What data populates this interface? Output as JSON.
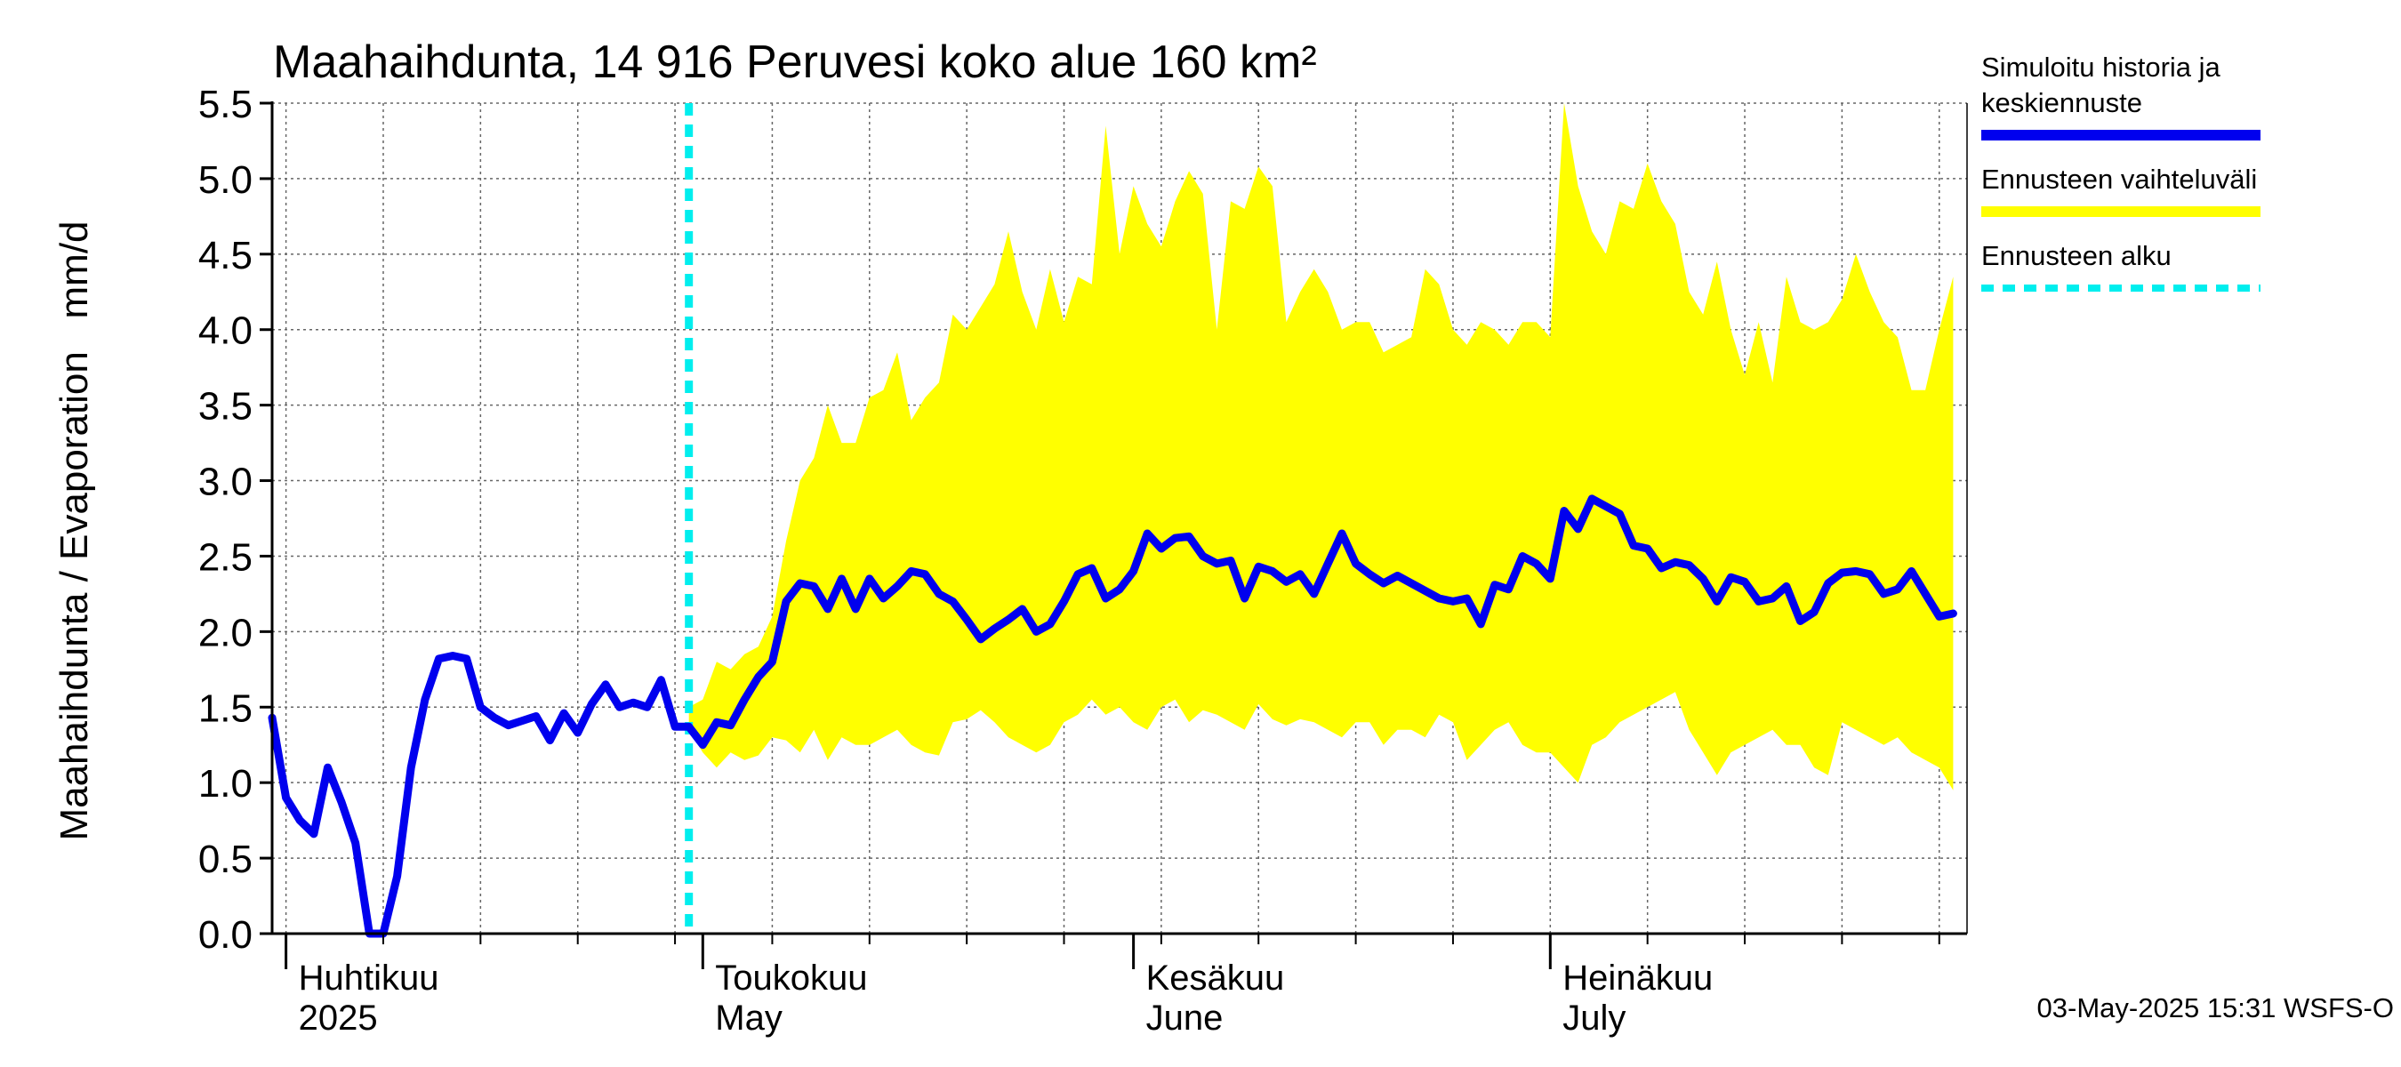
{
  "chart_data": {
    "type": "line",
    "title": "Maahaihdunta, 14 916 Peruvesi koko alue 160 km²",
    "ylabel": "Maahaihdunta / Evaporation   mm/d",
    "ylim": [
      0,
      5.5
    ],
    "yticks": [
      "0.0",
      "0.5",
      "1.0",
      "1.5",
      "2.0",
      "2.5",
      "3.0",
      "3.5",
      "4.0",
      "4.5",
      "5.0",
      "5.5"
    ],
    "grid": true,
    "xlim": [
      "2025-03-31",
      "2025-07-31"
    ],
    "month_labels": [
      {
        "top": "Huhtikuu",
        "bottom": "2025",
        "date": "2025-04-01"
      },
      {
        "top": "Toukokuu",
        "bottom": "May",
        "date": "2025-05-01"
      },
      {
        "top": "Kesäkuu",
        "bottom": "June",
        "date": "2025-06-01"
      },
      {
        "top": "Heinäkuu",
        "bottom": "July",
        "date": "2025-07-01"
      }
    ],
    "forecast_start": "2025-04-30",
    "legend_position": "right",
    "legend": [
      {
        "label_lines": [
          "Simuloitu historia ja",
          "keskiennuste"
        ],
        "color": "#0000ee",
        "style": "solid"
      },
      {
        "label_lines": [
          "Ennusteen vaihteluväli"
        ],
        "color": "#ffff00",
        "style": "solid"
      },
      {
        "label_lines": [
          "Ennusteen alku"
        ],
        "color": "#00eeee",
        "style": "dashed"
      }
    ],
    "series": [
      {
        "name": "Simuloitu historia ja keskiennuste",
        "color": "#0000ee",
        "start_date": "2025-03-31",
        "values": [
          1.43,
          0.9,
          0.75,
          0.66,
          1.1,
          0.87,
          0.6,
          0.0,
          0.0,
          0.38,
          1.1,
          1.55,
          1.82,
          1.84,
          1.82,
          1.5,
          1.43,
          1.38,
          1.41,
          1.44,
          1.28,
          1.46,
          1.33,
          1.52,
          1.65,
          1.5,
          1.53,
          1.5,
          1.68,
          1.37,
          1.37,
          1.25,
          1.4,
          1.38,
          1.55,
          1.7,
          1.8,
          2.2,
          2.32,
          2.3,
          2.15,
          2.35,
          2.15,
          2.35,
          2.22,
          2.3,
          2.4,
          2.38,
          2.25,
          2.2,
          2.08,
          1.95,
          2.02,
          2.08,
          2.15,
          2.0,
          2.05,
          2.2,
          2.38,
          2.42,
          2.22,
          2.28,
          2.4,
          2.65,
          2.55,
          2.62,
          2.63,
          2.5,
          2.45,
          2.47,
          2.22,
          2.43,
          2.4,
          2.33,
          2.38,
          2.25,
          2.45,
          2.65,
          2.45,
          2.38,
          2.32,
          2.37,
          2.32,
          2.27,
          2.22,
          2.2,
          2.22,
          2.05,
          2.31,
          2.28,
          2.5,
          2.45,
          2.35,
          2.8,
          2.68,
          2.88,
          2.83,
          2.78,
          2.57,
          2.55,
          2.42,
          2.46,
          2.44,
          2.35,
          2.2,
          2.36,
          2.33,
          2.2,
          2.22,
          2.3,
          2.07,
          2.13,
          2.32,
          2.39,
          2.4,
          2.38,
          2.25,
          2.28,
          2.4,
          2.25,
          2.1,
          2.12
        ]
      },
      {
        "name": "Ennusteen vaihteluväli",
        "color": "#ffff00",
        "start_date": "2025-04-30",
        "upper": [
          1.5,
          1.55,
          1.8,
          1.75,
          1.85,
          1.9,
          2.1,
          2.6,
          3.0,
          3.15,
          3.5,
          3.25,
          3.25,
          3.55,
          3.6,
          3.85,
          3.4,
          3.55,
          3.65,
          4.1,
          4.0,
          4.15,
          4.3,
          4.65,
          4.25,
          4.0,
          4.4,
          4.05,
          4.35,
          4.3,
          5.35,
          4.5,
          4.95,
          4.7,
          4.55,
          4.85,
          5.05,
          4.9,
          4.0,
          4.85,
          4.8,
          5.08,
          4.95,
          4.05,
          4.25,
          4.4,
          4.25,
          4.0,
          4.05,
          4.05,
          3.85,
          3.9,
          3.95,
          4.4,
          4.3,
          4.0,
          3.9,
          4.05,
          4.0,
          3.9,
          4.05,
          4.05,
          3.95,
          5.5,
          4.95,
          4.65,
          4.5,
          4.85,
          4.8,
          5.1,
          4.85,
          4.7,
          4.25,
          4.1,
          4.45,
          4.0,
          3.7,
          4.05,
          3.65,
          4.35,
          4.05,
          4.0,
          4.05,
          4.2,
          4.5,
          4.25,
          4.05,
          3.95,
          3.6,
          3.6,
          4.0,
          4.35
        ]
      },
      {
        "name": "Ennusteen vaihteluväli",
        "color": "#ffff00",
        "start_date": "2025-04-30",
        "lower": [
          1.35,
          1.2,
          1.1,
          1.2,
          1.15,
          1.18,
          1.3,
          1.28,
          1.2,
          1.35,
          1.15,
          1.3,
          1.25,
          1.25,
          1.3,
          1.35,
          1.25,
          1.2,
          1.18,
          1.4,
          1.42,
          1.48,
          1.4,
          1.3,
          1.25,
          1.2,
          1.25,
          1.4,
          1.45,
          1.55,
          1.45,
          1.5,
          1.4,
          1.35,
          1.5,
          1.55,
          1.4,
          1.48,
          1.45,
          1.4,
          1.35,
          1.52,
          1.42,
          1.38,
          1.42,
          1.4,
          1.35,
          1.3,
          1.4,
          1.4,
          1.25,
          1.35,
          1.35,
          1.3,
          1.45,
          1.4,
          1.15,
          1.25,
          1.35,
          1.4,
          1.25,
          1.2,
          1.2,
          1.1,
          1.0,
          1.25,
          1.3,
          1.4,
          1.45,
          1.5,
          1.55,
          1.6,
          1.35,
          1.2,
          1.05,
          1.2,
          1.25,
          1.3,
          1.35,
          1.25,
          1.25,
          1.1,
          1.05,
          1.4,
          1.35,
          1.3,
          1.25,
          1.3,
          1.2,
          1.15,
          1.1,
          0.95
        ]
      }
    ]
  },
  "footer": {
    "stamp": "03-May-2025 15:31 WSFS-O"
  }
}
